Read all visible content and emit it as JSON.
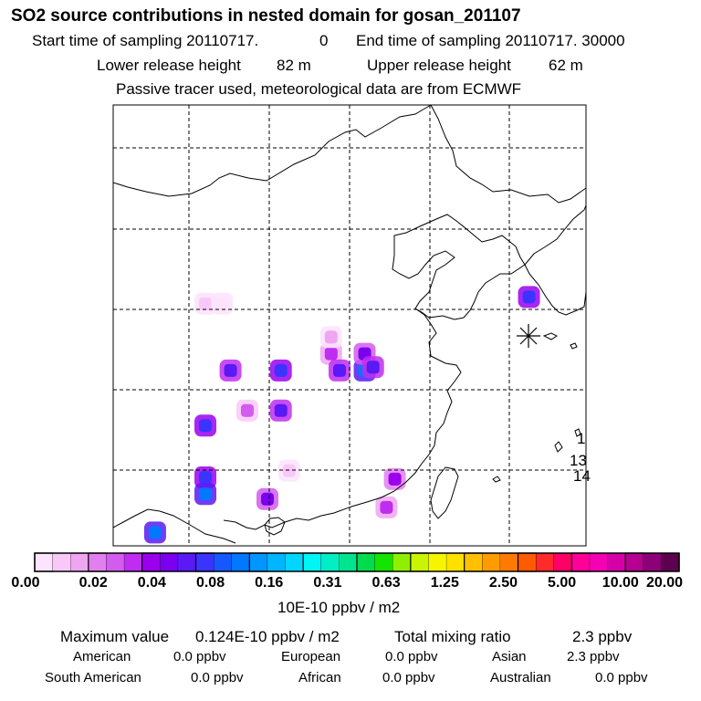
{
  "title": "SO2 source contributions in nested domain for gosan_201107",
  "header": {
    "start_label": "Start time of sampling 20110717.",
    "start_time": "0",
    "end_label": "End time of sampling 20110717. 30000",
    "lower_label": "Lower release height",
    "lower_value": "82 m",
    "upper_label": "Upper release height",
    "upper_value": "62 m",
    "note": "Passive tracer used, meteorological data are from ECMWF"
  },
  "colors": {
    "scale": [
      "#ffffff",
      "#fde3fd",
      "#f8c9f8",
      "#efa6f2",
      "#e27ff0",
      "#d25cee",
      "#bf2df0",
      "#9b00ee",
      "#7b00f0",
      "#5a19f5",
      "#3b34ff",
      "#1658ff",
      "#0078ff",
      "#0096ff",
      "#00b6ff",
      "#00d6ff",
      "#00f5f5",
      "#00eec4",
      "#00e48e",
      "#00dc4c",
      "#14e400",
      "#8ef000",
      "#c9f500",
      "#f5f500",
      "#ffe100",
      "#ffc000",
      "#ff9c00",
      "#ff7a00",
      "#ff5a00",
      "#ff2a2a",
      "#ff0066",
      "#ff0099",
      "#f500b4",
      "#d600a8",
      "#b50092",
      "#8c0078",
      "#5e0050"
    ],
    "land_line": "#000000",
    "grid": "#000000"
  },
  "chart_data": {
    "type": "heatmap",
    "title": "SO2 source contributions in nested domain for gosan_201107",
    "colorbar": {
      "ticks": [
        "0.00",
        "0.02",
        "0.04",
        "0.08",
        "0.16",
        "0.31",
        "0.63",
        "1.25",
        "2.50",
        "5.00",
        "10.00",
        "20.00"
      ],
      "unit": "10E-10 ppbv / m2"
    },
    "receptor": "gosan",
    "cells": [
      {
        "lon": 128.8,
        "lat": 35.4,
        "level": 10
      },
      {
        "lon": 119.0,
        "lat": 31.0,
        "level": 12
      },
      {
        "lon": 119.0,
        "lat": 32.0,
        "level": 8
      },
      {
        "lon": 119.5,
        "lat": 31.2,
        "level": 9
      },
      {
        "lon": 117.0,
        "lat": 32.0,
        "level": 6
      },
      {
        "lon": 117.5,
        "lat": 31.0,
        "level": 9
      },
      {
        "lon": 111.0,
        "lat": 31.0,
        "level": 9
      },
      {
        "lon": 114.0,
        "lat": 31.0,
        "level": 10
      },
      {
        "lon": 114.0,
        "lat": 28.6,
        "level": 9
      },
      {
        "lon": 112.0,
        "lat": 28.6,
        "level": 5
      },
      {
        "lon": 109.5,
        "lat": 27.7,
        "level": 10
      },
      {
        "lon": 109.5,
        "lat": 24.6,
        "level": 10
      },
      {
        "lon": 109.5,
        "lat": 23.6,
        "level": 12
      },
      {
        "lon": 113.2,
        "lat": 23.3,
        "level": 8
      },
      {
        "lon": 106.5,
        "lat": 21.3,
        "level": 12
      },
      {
        "lon": 120.8,
        "lat": 24.5,
        "level": 7
      },
      {
        "lon": 120.3,
        "lat": 22.8,
        "level": 6
      },
      {
        "lon": 109.5,
        "lat": 35.0,
        "level": 2
      },
      {
        "lon": 110.5,
        "lat": 35.0,
        "level": 1
      },
      {
        "lon": 117.0,
        "lat": 33.0,
        "level": 3
      },
      {
        "lon": 114.5,
        "lat": 25.0,
        "level": 2
      }
    ]
  },
  "map": {
    "labels": [
      "1",
      "13",
      "14"
    ]
  },
  "footer": {
    "max_label": "Maximum value",
    "max_value": "0.124E-10 ppbv / m2",
    "total_label": "Total mixing ratio",
    "total_value": "2.3 ppbv",
    "regions": [
      {
        "name": "American",
        "value": "0.0 ppbv"
      },
      {
        "name": "European",
        "value": "0.0 ppbv"
      },
      {
        "name": "Asian",
        "value": "2.3 ppbv"
      },
      {
        "name": "South American",
        "value": "0.0 ppbv"
      },
      {
        "name": "African",
        "value": "0.0 ppbv"
      },
      {
        "name": "Australian",
        "value": "0.0 ppbv"
      }
    ]
  }
}
